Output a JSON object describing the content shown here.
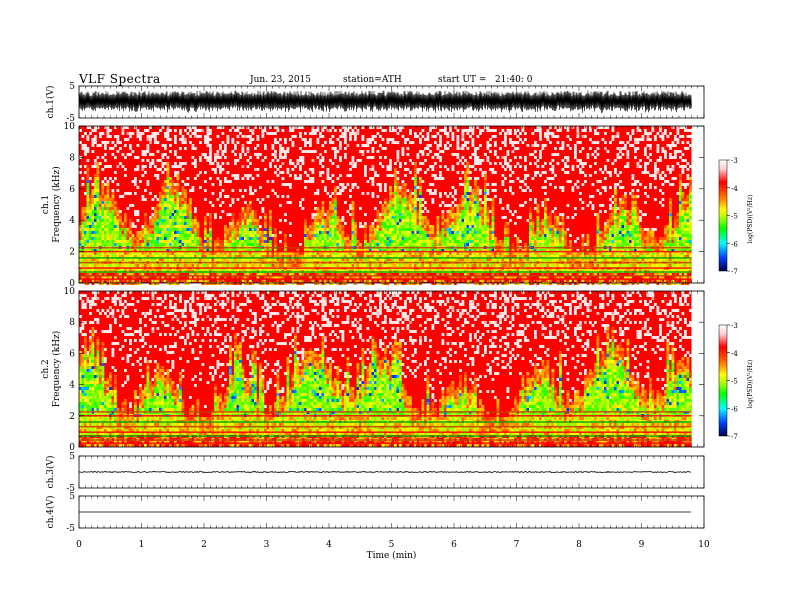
{
  "header": {
    "title": "VLF Spectra",
    "date": "Jun. 23, 2015",
    "station": "station=ATH",
    "start": "start UT =   21:40: 0"
  },
  "chart_data": [
    {
      "type": "line",
      "panel": "ch1-waveform",
      "ylabel": "ch.1(V)",
      "ylim": [
        -5,
        5
      ],
      "yticks": [
        "5",
        "-5"
      ],
      "xlim": [
        0,
        10
      ],
      "description_values": {
        "amplitude_min": -3.5,
        "amplitude_max": 3.5
      },
      "color": "#000000"
    },
    {
      "type": "heatmap",
      "panel": "ch1-spectrogram",
      "ylabel": [
        "ch.1",
        "Frequency  (kHz)"
      ],
      "ylim": [
        0,
        10
      ],
      "yticks": [
        "0",
        "2",
        "4",
        "6",
        "8",
        "10"
      ],
      "xlim": [
        0,
        9.8
      ],
      "colorbar": {
        "label": "log(PSD)(V²/Hz)",
        "range": [
          -7,
          -3
        ],
        "ticks": [
          "-3",
          "-4",
          "-5",
          "-6",
          "-7"
        ]
      },
      "dominant_levels": {
        "above_6kHz": -3.5,
        "2_to_6kHz": -4.5,
        "below_2kHz": -5
      }
    },
    {
      "type": "heatmap",
      "panel": "ch2-spectrogram",
      "ylabel": [
        "ch.2",
        "Frequency  (kHz)"
      ],
      "ylim": [
        0,
        10
      ],
      "yticks": [
        "0",
        "2",
        "4",
        "6",
        "8",
        "10"
      ],
      "xlim": [
        0,
        9.8
      ],
      "colorbar": {
        "label": "log(PSD)(V²/Hz)",
        "range": [
          -7,
          -3
        ],
        "ticks": [
          "-3",
          "-4",
          "-5",
          "-6",
          "-7"
        ]
      },
      "dominant_levels": {
        "above_6kHz": -3.5,
        "2_to_6kHz": -4.5,
        "below_2kHz": -5
      }
    },
    {
      "type": "line",
      "panel": "ch3-waveform",
      "ylabel": "ch.3(V)",
      "ylim": [
        -5,
        5
      ],
      "yticks": [
        "5",
        "-5"
      ],
      "xlim": [
        0,
        9.8
      ],
      "level": 0,
      "color": "#000000"
    },
    {
      "type": "line",
      "panel": "ch4-waveform",
      "ylabel": "ch.4(V)",
      "ylim": [
        -5,
        5
      ],
      "yticks": [
        "5",
        "-5"
      ],
      "xlim": [
        0,
        9.8
      ],
      "level": 0,
      "color": "#000000"
    }
  ],
  "xaxis": {
    "label": "Time  (min)",
    "ticks": [
      "0",
      "1",
      "2",
      "3",
      "4",
      "5",
      "6",
      "7",
      "8",
      "9",
      "10"
    ]
  },
  "colors": {
    "psd_high": "#ff0000",
    "psd_mid": "#ffff00",
    "psd_low": "#00ff00",
    "psd_lower": "#00ffff",
    "psd_lowest": "#0000ff"
  }
}
